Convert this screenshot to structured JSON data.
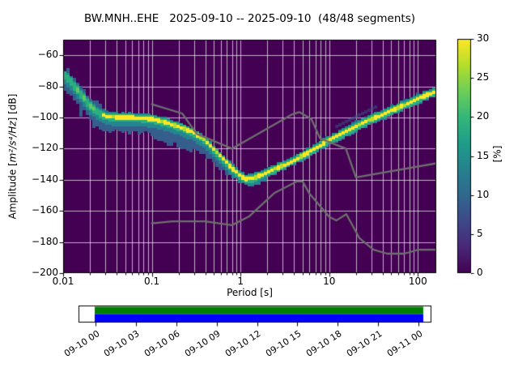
{
  "title": "BW.MNH..EHE   2025-09-10 -- 2025-09-10  (48/48 segments)",
  "axes": {
    "xlabel": "Period [s]",
    "ylabel_prefix": "Amplitude [",
    "ylabel_math": "m²/s⁴/Hz",
    "ylabel_suffix": "] [dB]",
    "colorbar_label": "[%]"
  },
  "chart_data": {
    "type": "heatmap",
    "title": "BW.MNH..EHE   2025-09-10 -- 2025-09-10  (48/48 segments)",
    "xlabel": "Period [s]",
    "ylabel": "Amplitude [m²/s⁴/Hz] [dB]",
    "xscale": "log",
    "xlim": [
      0.01,
      161
    ],
    "ylim": [
      -200,
      -50
    ],
    "grid": true,
    "x_ticks": {
      "values": [
        0.01,
        0.1,
        1,
        10,
        100
      ],
      "labels": [
        "0.01",
        "0.1",
        "1",
        "10",
        "100"
      ]
    },
    "y_ticks": {
      "values": [
        -60,
        -80,
        -100,
        -120,
        -140,
        -160,
        -180,
        -200
      ],
      "labels": [
        "−60",
        "−80",
        "−100",
        "−120",
        "−140",
        "−160",
        "−180",
        "−200"
      ]
    },
    "colorbar": {
      "label": "[%]",
      "min": 0,
      "max": 30,
      "tick_values": [
        0,
        5,
        10,
        15,
        20,
        25,
        30
      ],
      "tick_labels": [
        "0",
        "5",
        "10",
        "15",
        "20",
        "25",
        "30"
      ],
      "colormap": "viridis"
    },
    "mode_curve": {
      "comment": "ridge (highest-probability PSD value, dB) vs period (s)",
      "periods": [
        0.01,
        0.012,
        0.014,
        0.017,
        0.02,
        0.024,
        0.03,
        0.04,
        0.06,
        0.08,
        0.1,
        0.13,
        0.17,
        0.22,
        0.3,
        0.4,
        0.46,
        0.55,
        0.65,
        0.8,
        1.0,
        1.15,
        1.4,
        1.7,
        2.0,
        3.0,
        4.0,
        6.0,
        10.0,
        15.0,
        25.0,
        40.0,
        70.0,
        100.0,
        140.0,
        161.0
      ],
      "db": [
        -72,
        -76,
        -81,
        -87,
        -92,
        -96,
        -99,
        -100,
        -100,
        -100.5,
        -101,
        -102.5,
        -104.5,
        -106.5,
        -110,
        -114.5,
        -118,
        -123,
        -127,
        -132.5,
        -137.5,
        -139.5,
        -139,
        -137,
        -135,
        -131,
        -127.5,
        -122,
        -114.5,
        -109.5,
        -103,
        -98,
        -92,
        -88,
        -84.5,
        -83
      ]
    },
    "noise_models": {
      "name": "Peterson (1993) NHNM / NLNM",
      "nhnm": [
        [
          0.1,
          -91.5
        ],
        [
          0.22,
          -97.4
        ],
        [
          0.32,
          -110.5
        ],
        [
          0.8,
          -120.0
        ],
        [
          3.8,
          -98.0
        ],
        [
          4.6,
          -96.5
        ],
        [
          6.3,
          -101.0
        ],
        [
          7.9,
          -113.5
        ],
        [
          15.4,
          -120.0
        ],
        [
          20.0,
          -138.5
        ],
        [
          354.8,
          -126.0
        ]
      ],
      "nlnm": [
        [
          0.1,
          -168.0
        ],
        [
          0.17,
          -166.7
        ],
        [
          0.4,
          -166.7
        ],
        [
          0.8,
          -169.2
        ],
        [
          1.24,
          -163.7
        ],
        [
          2.4,
          -148.6
        ],
        [
          4.3,
          -141.1
        ],
        [
          5.0,
          -141.1
        ],
        [
          6.0,
          -149.0
        ],
        [
          10.0,
          -163.8
        ],
        [
          12.0,
          -166.2
        ],
        [
          15.6,
          -162.1
        ],
        [
          21.9,
          -177.5
        ],
        [
          31.6,
          -185.0
        ],
        [
          45.0,
          -187.5
        ],
        [
          70.0,
          -187.5
        ],
        [
          101.0,
          -185.0
        ],
        [
          154.0,
          -185.0
        ],
        [
          328.0,
          -187.5
        ]
      ]
    },
    "colors": {
      "background": "#440154",
      "grid": "rgba(255,255,255,0.85)",
      "noise_model_line": "#6e6e6e",
      "hist_blue": "#355e8d",
      "hist_teal": "#24868e",
      "hist_green": "#2ab07f",
      "hist_bright": "#b5de2b",
      "hist_core": "#fde725",
      "viridis_stops": [
        "#440154",
        "#482878",
        "#3e4989",
        "#31688e",
        "#26828e",
        "#1f9e89",
        "#35b779",
        "#6ece58",
        "#b5de2b",
        "#fde725"
      ]
    }
  },
  "timeline": {
    "tick_labels": [
      "09-10 00",
      "09-10 03",
      "09-10 06",
      "09-10 09",
      "09-10 12",
      "09-10 15",
      "09-10 18",
      "09-10 21",
      "09-11 00"
    ],
    "bar_top_color": "#008000",
    "bar_bottom_color": "#0000ff"
  }
}
